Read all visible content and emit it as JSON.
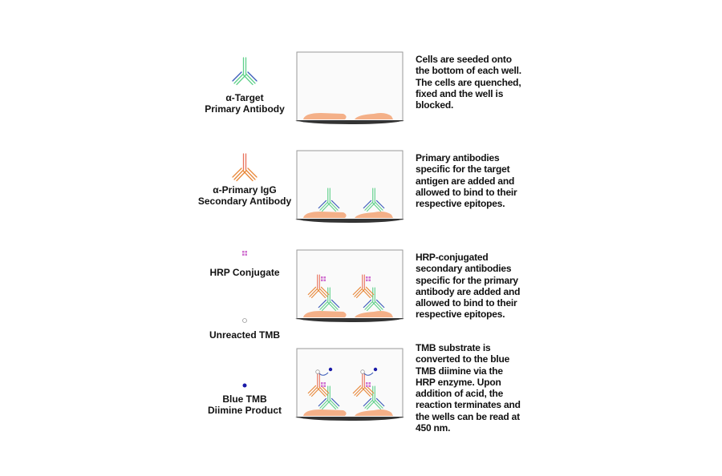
{
  "legend": [
    {
      "icon": "primary-antibody-icon",
      "lines": [
        "α-Target",
        "Primary Antibody"
      ]
    },
    {
      "icon": "secondary-antibody-icon",
      "lines": [
        "α-Primary IgG",
        "Secondary Antibody"
      ]
    },
    {
      "icon": "hrp-conjugate-icon",
      "lines": [
        "HRP Conjugate"
      ]
    },
    {
      "icon": "unreacted-tmb-icon",
      "lines": [
        "Unreacted TMB"
      ]
    },
    {
      "icon": "blue-tmb-icon",
      "lines": [
        "Blue TMB",
        "Diimine Product"
      ]
    }
  ],
  "steps": [
    {
      "lines": [
        "Cells are seeded onto",
        "the bottom of each well.",
        "The cells are quenched,",
        "fixed and the well is",
        "blocked."
      ]
    },
    {
      "lines": [
        "Primary antibodies",
        "specific for the target",
        "antigen are added and",
        "allowed to bind to their",
        "respective epitopes."
      ]
    },
    {
      "lines": [
        "HRP-conjugated",
        "secondary antibodies",
        "specific for the primary",
        "antibody are added and",
        "allowed to bind to their",
        "respective epitopes."
      ]
    },
    {
      "lines": [
        "TMB substrate is",
        "converted to the blue",
        "TMB diimine via the",
        "HRP enzyme. Upon",
        "addition of acid, the",
        "reaction terminates and",
        "the wells can be read at",
        "450 nm."
      ]
    }
  ],
  "colors": {
    "primary": "#5fd08a",
    "light_chain": "#3a5bb8",
    "secondary": "#e8705a",
    "secondary_arm": "#e8883a",
    "hrp": "#d070d0",
    "tmb_blue": "#1a1aa8",
    "cell": "#f4b088",
    "well_base": "#333333"
  }
}
